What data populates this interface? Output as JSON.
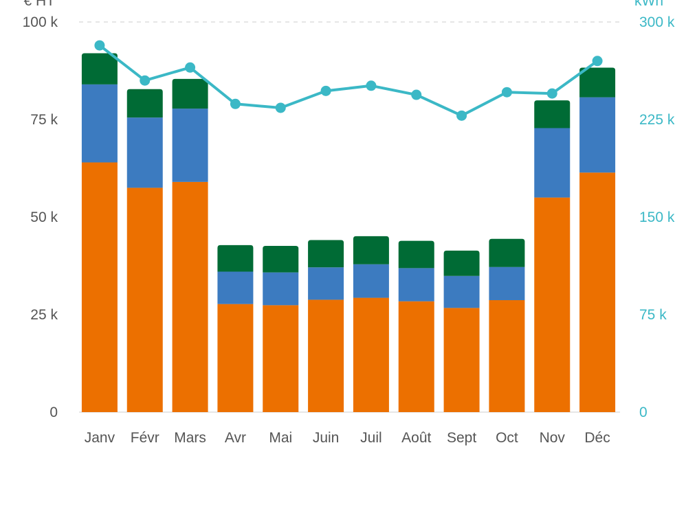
{
  "chart_data": {
    "type": "bar",
    "stacked": true,
    "categories": [
      "Janv",
      "Févr",
      "Mars",
      "Avr",
      "Mai",
      "Juin",
      "Juil",
      "Août",
      "Sept",
      "Oct",
      "Nov",
      "Déc"
    ],
    "series": [
      {
        "kind": "bar",
        "axis": "left",
        "color": "#ec7000",
        "values": [
          64,
          57.5,
          59,
          27.7,
          27.4,
          28.8,
          29.3,
          28.4,
          26.7,
          28.7,
          55,
          61.4
        ]
      },
      {
        "kind": "bar",
        "axis": "left",
        "color": "#3c7bc0",
        "values": [
          20,
          18,
          18.8,
          8.3,
          8.4,
          8.3,
          8.6,
          8.5,
          8.2,
          8.5,
          17.8,
          19.3
        ]
      },
      {
        "kind": "bar",
        "axis": "left",
        "color": "#006b35",
        "values": [
          8,
          7.3,
          7.6,
          6.8,
          6.8,
          7,
          7.2,
          7,
          6.5,
          7.2,
          7.1,
          7.6
        ]
      },
      {
        "kind": "line",
        "axis": "right",
        "color": "#3bb8c6",
        "values": [
          282000,
          255000,
          265000,
          237000,
          234000,
          247000,
          251000,
          244000,
          228000,
          246000,
          245000,
          270000
        ]
      }
    ],
    "y_left": {
      "label": "€ HT",
      "ylim": [
        0,
        100
      ],
      "ticks": [
        0,
        25,
        50,
        75,
        100
      ],
      "tick_labels": [
        "0",
        "25 k",
        "50 k",
        "75 k",
        "100 k"
      ]
    },
    "y_right": {
      "label": "kWh",
      "ylim": [
        0,
        300000
      ],
      "ticks": [
        0,
        75000,
        150000,
        225000,
        300000
      ],
      "tick_labels": [
        "0",
        "75 k",
        "150 k",
        "225 k",
        "300 k"
      ],
      "color": "#3bb8c6"
    },
    "grid": "top-dashed-only",
    "legend": "none"
  }
}
